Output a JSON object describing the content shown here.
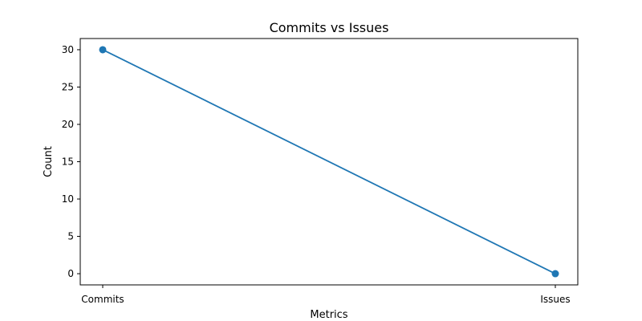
{
  "chart_data": {
    "type": "line",
    "title": "Commits vs Issues",
    "xlabel": "Metrics",
    "ylabel": "Count",
    "categories": [
      "Commits",
      "Issues"
    ],
    "series": [
      {
        "values": [
          30,
          0
        ],
        "color": "#1f77b4",
        "marker": "circle"
      }
    ],
    "ylim": [
      -1.5,
      31.5
    ],
    "yticks": [
      0,
      5,
      10,
      15,
      20,
      25,
      30
    ],
    "grid": false,
    "legend": "none"
  }
}
